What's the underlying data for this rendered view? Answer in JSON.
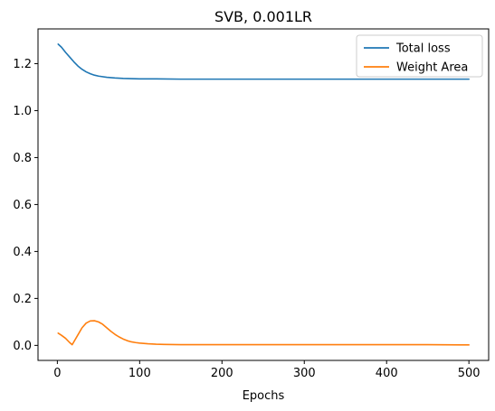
{
  "chart_data": {
    "type": "line",
    "title": "SVB, 0.001LR",
    "xlabel": "Epochs",
    "ylabel": "",
    "xlim": [
      -23.5,
      524
    ],
    "ylim": [
      -0.064,
      1.348
    ],
    "xticks": [
      0,
      100,
      200,
      300,
      400,
      500
    ],
    "yticks": [
      0.0,
      0.2,
      0.4,
      0.6,
      0.8,
      1.0,
      1.2
    ],
    "ytick_labels": [
      "0.0",
      "0.2",
      "0.4",
      "0.6",
      "0.8",
      "1.0",
      "1.2"
    ],
    "grid": false,
    "legend_position": "top-right",
    "series": [
      {
        "name": "Total loss",
        "color": "#1f77b4",
        "x": [
          1,
          5,
          10,
          15,
          20,
          25,
          30,
          35,
          40,
          45,
          50,
          60,
          70,
          80,
          90,
          100,
          120,
          150,
          200,
          300,
          400,
          500
        ],
        "y": [
          1.283,
          1.27,
          1.248,
          1.228,
          1.208,
          1.19,
          1.176,
          1.165,
          1.157,
          1.151,
          1.147,
          1.142,
          1.139,
          1.137,
          1.136,
          1.135,
          1.135,
          1.134,
          1.134,
          1.134,
          1.134,
          1.134
        ]
      },
      {
        "name": "Weight Area",
        "color": "#ff7f0e",
        "x": [
          1,
          5,
          10,
          15,
          18,
          20,
          25,
          30,
          35,
          40,
          45,
          50,
          55,
          60,
          65,
          70,
          75,
          80,
          85,
          90,
          95,
          100,
          110,
          120,
          130,
          150,
          200,
          250,
          300,
          350,
          400,
          450,
          500
        ],
        "y": [
          0.052,
          0.043,
          0.03,
          0.012,
          0.003,
          0.015,
          0.045,
          0.075,
          0.095,
          0.104,
          0.105,
          0.1,
          0.09,
          0.075,
          0.06,
          0.047,
          0.036,
          0.027,
          0.02,
          0.015,
          0.012,
          0.01,
          0.007,
          0.005,
          0.004,
          0.003,
          0.003,
          0.003,
          0.003,
          0.003,
          0.003,
          0.003,
          0.002
        ]
      }
    ]
  }
}
